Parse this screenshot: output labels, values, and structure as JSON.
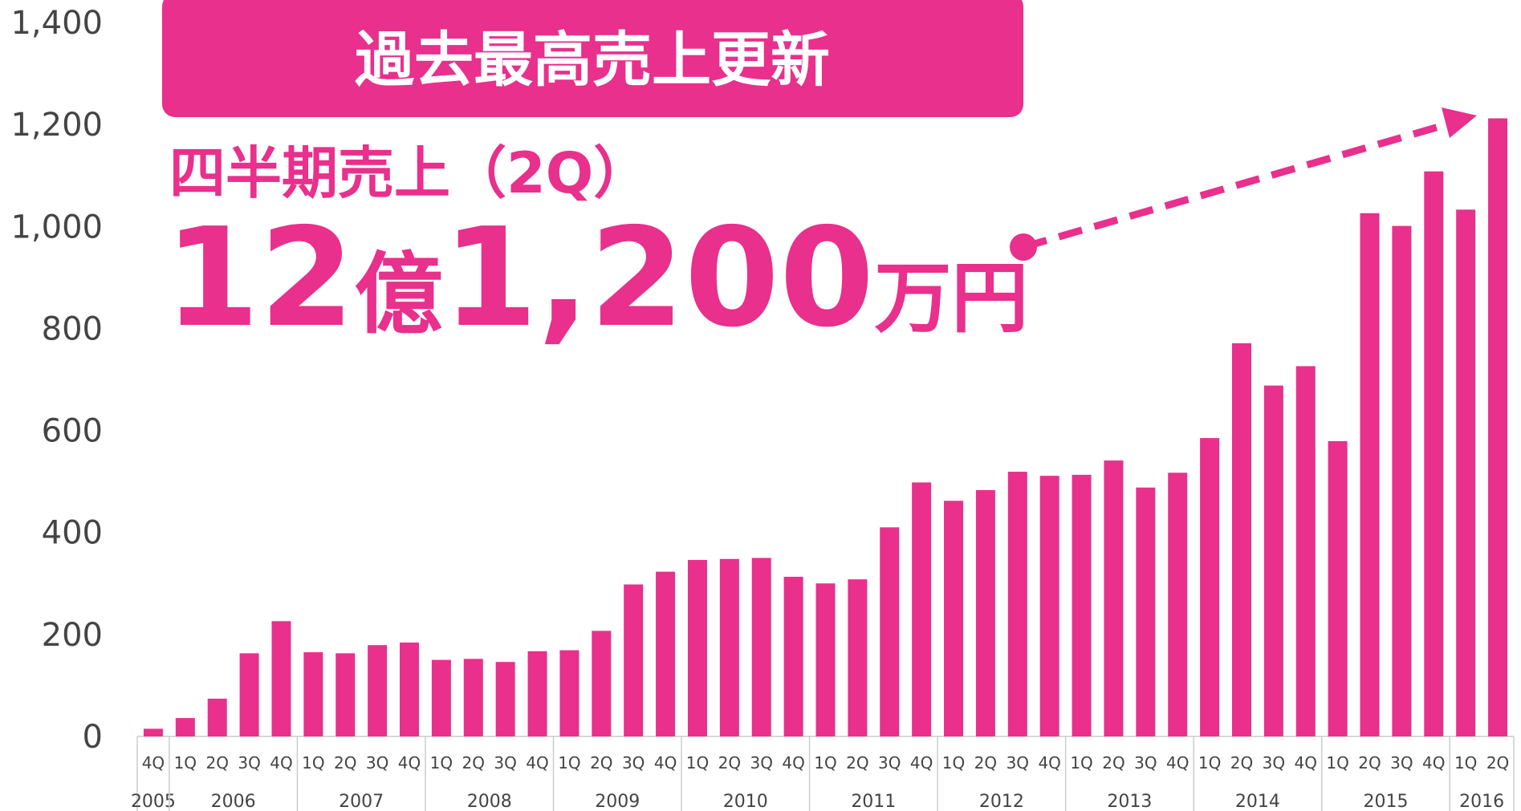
{
  "chart_data": {
    "type": "bar",
    "banner": "過去最高売上更新",
    "subtitle": "四半期売上（2Q）",
    "headline": [
      "12",
      "億",
      "1,200",
      "万円"
    ],
    "categories": [
      "4Q",
      "1Q",
      "2Q",
      "3Q",
      "4Q",
      "1Q",
      "2Q",
      "3Q",
      "4Q",
      "1Q",
      "2Q",
      "3Q",
      "4Q",
      "1Q",
      "2Q",
      "3Q",
      "4Q",
      "1Q",
      "2Q",
      "3Q",
      "4Q",
      "1Q",
      "2Q",
      "3Q",
      "4Q",
      "1Q",
      "2Q",
      "3Q",
      "4Q",
      "1Q",
      "2Q",
      "3Q",
      "4Q",
      "1Q",
      "2Q",
      "3Q",
      "4Q",
      "1Q",
      "2Q",
      "3Q",
      "4Q",
      "1Q",
      "2Q"
    ],
    "years": [
      "2005",
      "2006",
      "2007",
      "2008",
      "2009",
      "2010",
      "2011",
      "2012",
      "2013",
      "2014",
      "2015",
      "2016"
    ],
    "values": [
      15,
      36,
      74,
      163,
      226,
      165,
      163,
      179,
      184,
      150,
      152,
      146,
      167,
      169,
      207,
      298,
      323,
      346,
      348,
      350,
      313,
      300,
      308,
      410,
      498,
      462,
      483,
      519,
      511,
      513,
      541,
      488,
      517,
      585,
      771,
      688,
      726,
      579,
      1026,
      1001,
      1108,
      1033,
      1212
    ],
    "color": "#e8308c",
    "ylim": [
      0,
      1400
    ],
    "yticks": [
      0,
      200,
      400,
      600,
      800,
      {
        "value": 1000,
        "label": "1,000"
      },
      {
        "value": 1200,
        "label": "1,200"
      },
      {
        "value": 1400,
        "label": "1,400"
      }
    ],
    "grid": false
  }
}
